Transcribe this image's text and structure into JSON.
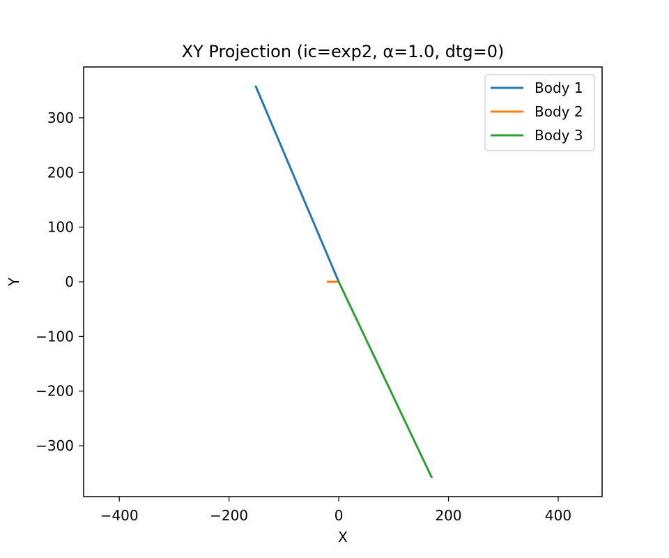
{
  "chart_data": {
    "type": "line",
    "title": "XY Projection (ic=exp2, α=1.0, dtg=0)",
    "xlabel": "X",
    "ylabel": "Y",
    "xlim": [
      -465,
      480
    ],
    "ylim": [
      -393,
      393
    ],
    "xticks": [
      -400,
      -200,
      0,
      200,
      400
    ],
    "xtick_labels": [
      "−400",
      "−200",
      "0",
      "200",
      "400"
    ],
    "yticks": [
      300,
      200,
      100,
      0,
      -100,
      -200,
      -300
    ],
    "ytick_labels": [
      "300",
      "200",
      "100",
      "0",
      "−100",
      "−200",
      "−300"
    ],
    "grid": false,
    "legend_position": "top-right",
    "series": [
      {
        "name": "Body 1",
        "color": "#1f77b4",
        "x": [
          -151,
          0
        ],
        "y": [
          357,
          0
        ]
      },
      {
        "name": "Body 2",
        "color": "#ff7f0e",
        "x": [
          -20,
          0
        ],
        "y": [
          0,
          0
        ]
      },
      {
        "name": "Body 3",
        "color": "#2ca02c",
        "x": [
          0,
          169
        ],
        "y": [
          0,
          -357
        ]
      }
    ]
  }
}
